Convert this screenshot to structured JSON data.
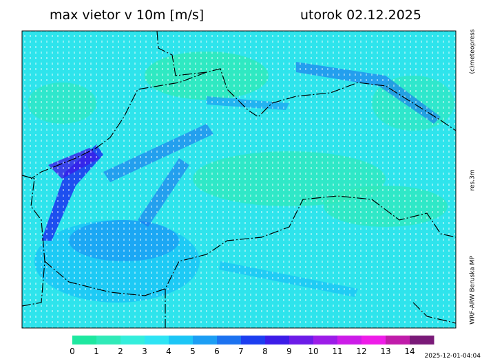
{
  "header": {
    "title": "max vietor v 10m [m/s]",
    "date": "utorok 02.12.2025"
  },
  "side_labels": [
    "(c)meteopress",
    "res.3m",
    "WRF-ARW Beruska MP"
  ],
  "colorbar": {
    "labels": [
      0,
      1,
      2,
      3,
      4,
      5,
      6,
      7,
      8,
      9,
      10,
      11,
      12,
      13,
      14
    ],
    "colors": [
      "#1ee8a0",
      "#30eab8",
      "#34eedc",
      "#2ee4f4",
      "#1cc6f6",
      "#1c9ef4",
      "#1c72f0",
      "#1c3ef0",
      "#3c1ce8",
      "#6c1ce8",
      "#9c1ce8",
      "#cc1ce8",
      "#ee1ce8",
      "#c01caa",
      "#7a1a78"
    ]
  },
  "timestamp": "2025-12-01-04:04"
}
